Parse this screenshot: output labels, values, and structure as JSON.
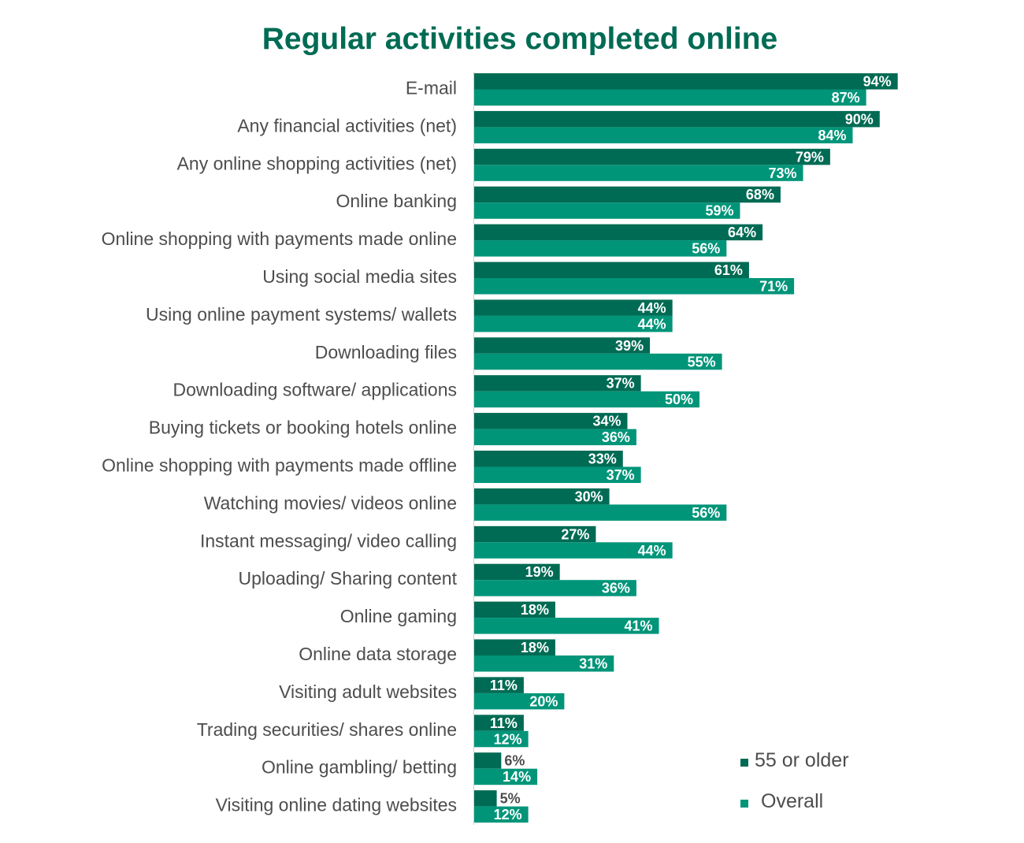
{
  "colors": {
    "older": "#006B54",
    "overall": "#009579",
    "title": "#006B54",
    "label": "#4d4d4d",
    "axis": "#d0d0d0"
  },
  "chart_data": {
    "type": "bar",
    "orientation": "horizontal",
    "title": "Regular activities completed online",
    "xlim": [
      0,
      100
    ],
    "grid": false,
    "legend_position": "bottom-right",
    "categories": [
      "E-mail",
      "Any financial activities (net)",
      "Any online shopping activities (net)",
      "Online banking",
      "Online shopping with payments made online",
      "Using social media sites",
      "Using online payment systems/ wallets",
      "Downloading files",
      "Downloading software/ applications",
      "Buying tickets or booking hotels online",
      "Online shopping with payments made offline",
      "Watching movies/ videos online",
      "Instant messaging/ video calling",
      "Uploading/ Sharing content",
      "Online gaming",
      "Online data storage",
      "Visiting adult websites",
      "Trading securities/ shares online",
      "Online gambling/ betting",
      "Visiting online dating websites"
    ],
    "series": [
      {
        "name": "55 or older",
        "values": [
          94,
          90,
          79,
          68,
          64,
          61,
          44,
          39,
          37,
          34,
          33,
          30,
          27,
          19,
          18,
          18,
          11,
          11,
          6,
          5
        ]
      },
      {
        "name": "Overall",
        "values": [
          87,
          84,
          73,
          59,
          56,
          71,
          44,
          55,
          50,
          36,
          37,
          56,
          44,
          36,
          41,
          31,
          20,
          12,
          14,
          12
        ]
      }
    ],
    "value_suffix": "%"
  }
}
